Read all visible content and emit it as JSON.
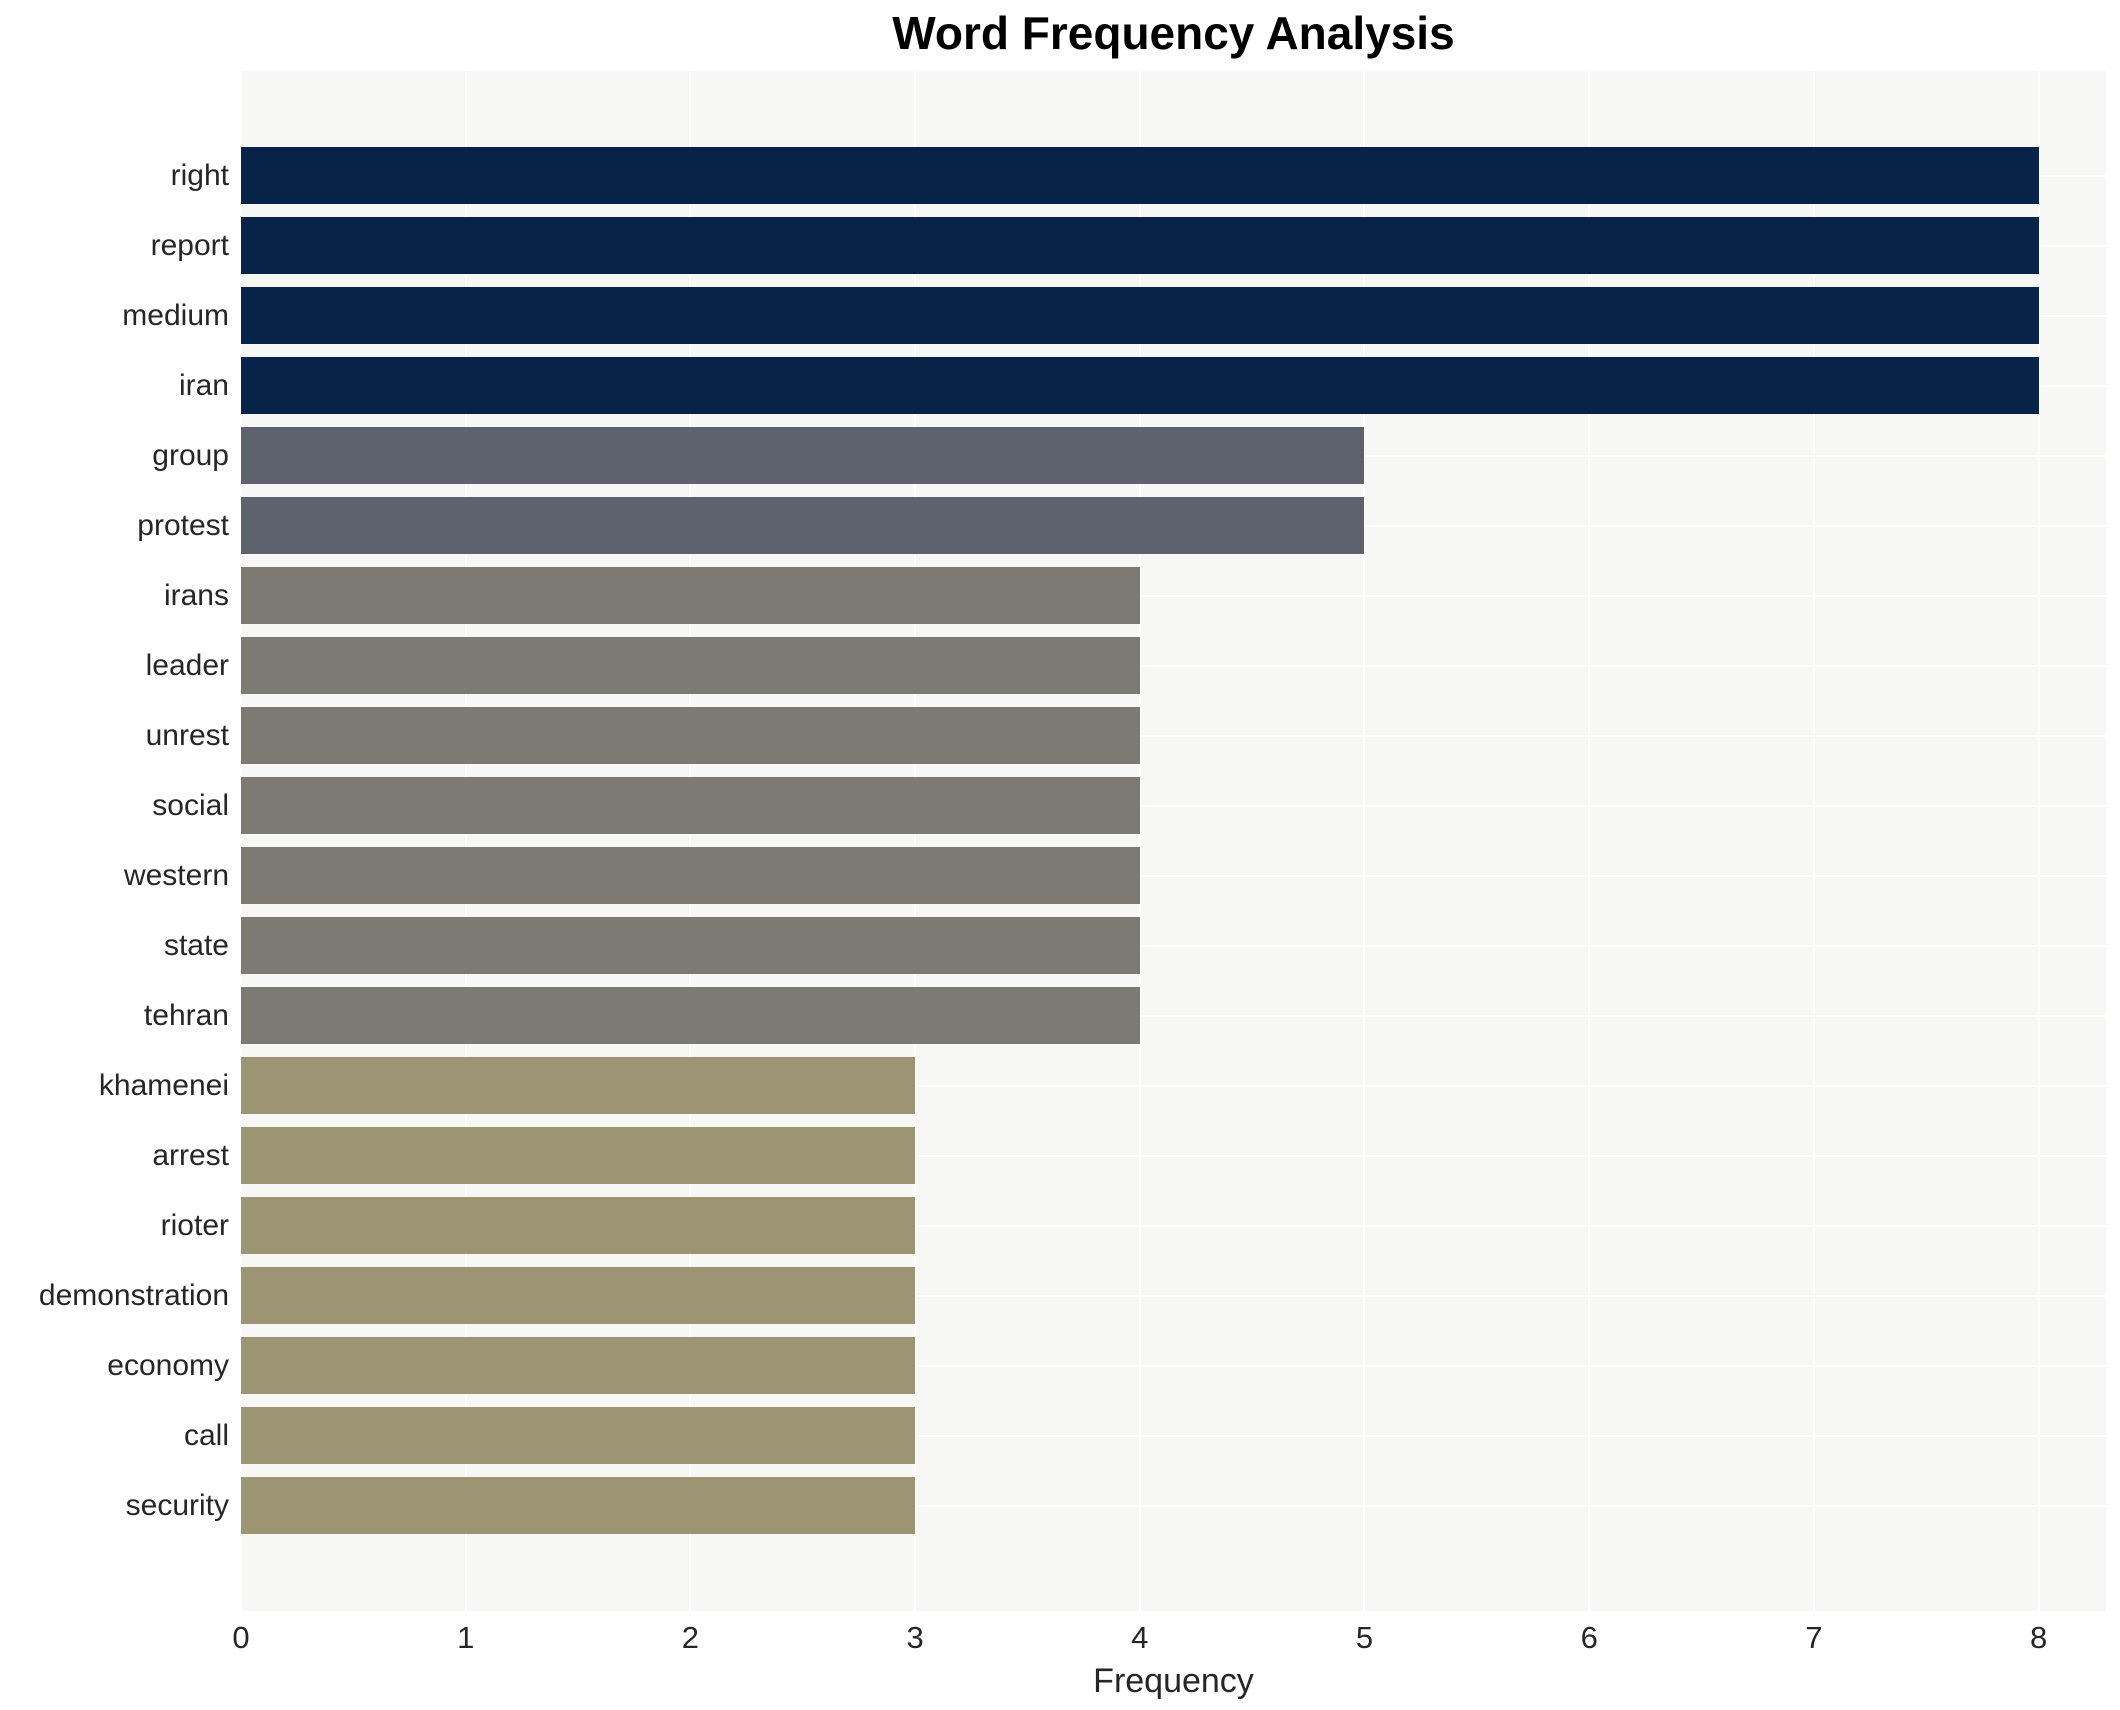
{
  "page": {
    "title": "Word Frequency Analysis"
  },
  "chart_data": {
    "type": "bar",
    "orientation": "horizontal",
    "title": "Word Frequency Analysis",
    "xlabel": "Frequency",
    "ylabel": "",
    "categories": [
      "right",
      "report",
      "medium",
      "iran",
      "group",
      "protest",
      "irans",
      "leader",
      "unrest",
      "social",
      "western",
      "state",
      "tehran",
      "khamenei",
      "arrest",
      "rioter",
      "demonstration",
      "economy",
      "call",
      "security"
    ],
    "values": [
      8,
      8,
      8,
      8,
      5,
      5,
      4,
      4,
      4,
      4,
      4,
      4,
      4,
      3,
      3,
      3,
      3,
      3,
      3,
      3
    ],
    "bar_colors": [
      "#072348",
      "#072348",
      "#072348",
      "#072348",
      "#5d626e",
      "#5d626e",
      "#7d7a74",
      "#7d7a74",
      "#7d7a74",
      "#7d7a74",
      "#7d7a74",
      "#7d7a74",
      "#7d7a74",
      "#9c9473",
      "#9c9473",
      "#9c9473",
      "#9c9473",
      "#9c9473",
      "#9c9473",
      "#9c9473"
    ],
    "palette": {
      "frequency_8": "#072348",
      "frequency_5": "#5d626e",
      "frequency_4": "#7d7a74",
      "frequency_3": "#9c9473"
    },
    "xlim": [
      0,
      8.3
    ],
    "xticks": [
      0,
      1,
      2,
      3,
      4,
      5,
      6,
      7,
      8
    ],
    "grid": "on",
    "grid_color": "#ffffff",
    "plot_bg_color": "#f7f7f6",
    "text_color": "#262626",
    "legend": "none"
  }
}
